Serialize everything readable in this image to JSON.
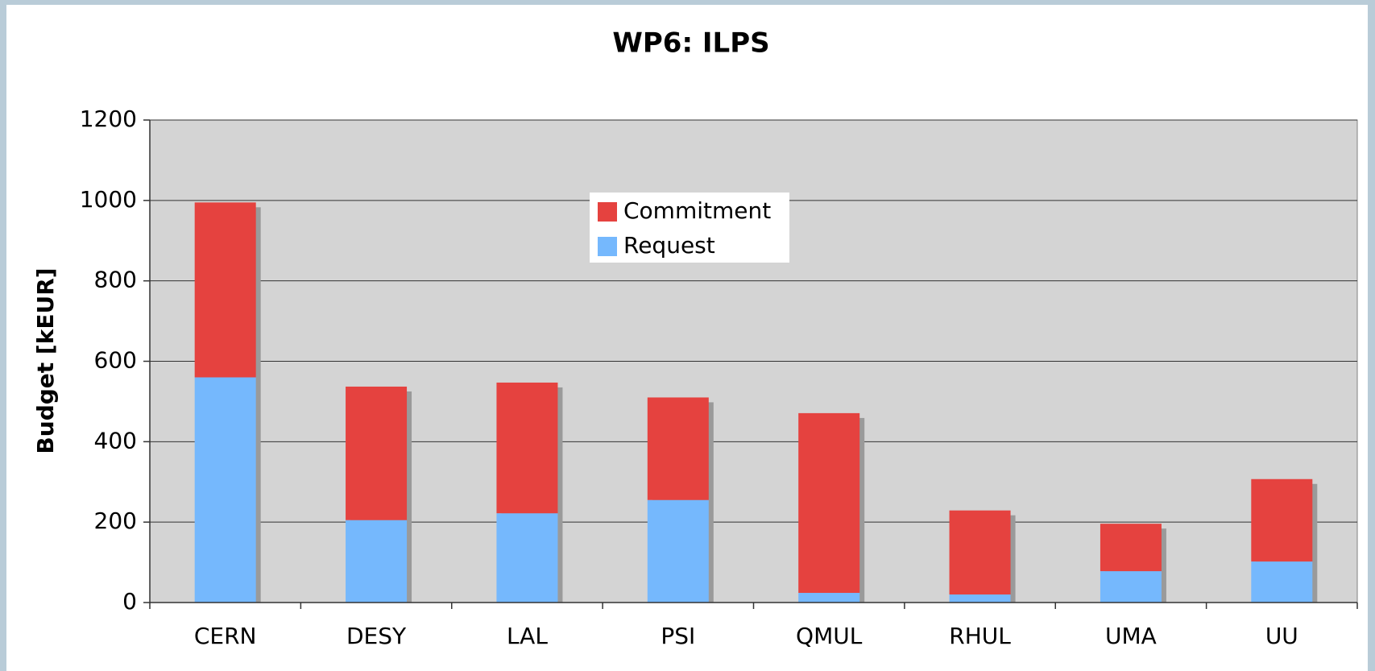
{
  "chart_data": {
    "type": "stacked_bar",
    "title": "WP6: ILPS",
    "y_label": "Budget [kEUR]",
    "categories": [
      "CERN",
      "DESY",
      "LAL",
      "PSI",
      "QMUL",
      "RHUL",
      "UMA",
      "UU"
    ],
    "series": [
      {
        "name": "Request",
        "color": "#75b8fd",
        "values": [
          560,
          205,
          222,
          255,
          24,
          20,
          78,
          102
        ]
      },
      {
        "name": "Commitment",
        "color": "#e5423f",
        "values": [
          435,
          332,
          325,
          255,
          447,
          209,
          118,
          205
        ]
      }
    ],
    "ylim": [
      0,
      1200
    ],
    "yticks": [
      0,
      200,
      400,
      600,
      800,
      1000,
      1200
    ],
    "grid": true,
    "legend": "top-center"
  }
}
